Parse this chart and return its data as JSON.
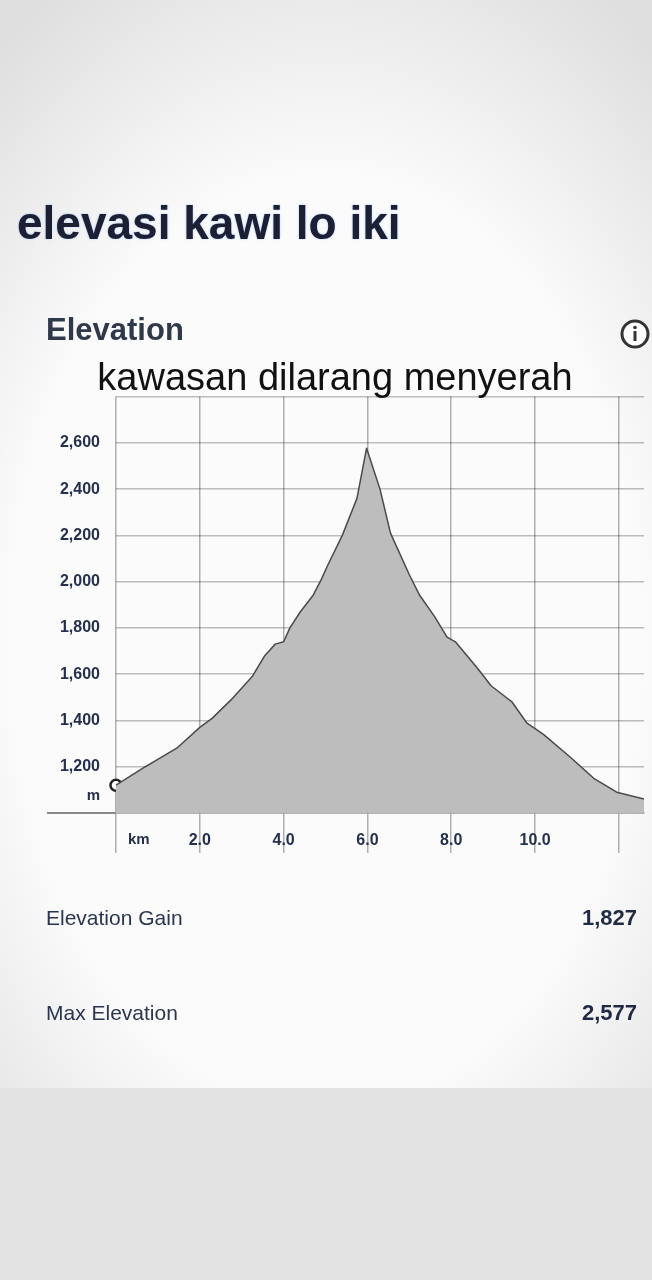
{
  "chart_data": {
    "type": "area",
    "title": "elevasi kawi lo iki",
    "subtitle": "Elevation",
    "xlabel": "km",
    "ylabel": "m",
    "annotations": [
      "kawasan dilarang menyerah",
      "Elevation Gain",
      "1,827",
      "Max Elevation",
      "2,577"
    ],
    "x": [
      0,
      0.7,
      1.45,
      2.0,
      2.3,
      2.75,
      3.25,
      3.55,
      3.8,
      4.0,
      4.15,
      4.4,
      4.7,
      4.9,
      5.05,
      5.4,
      5.75,
      5.98,
      6.3,
      6.55,
      7.0,
      7.25,
      7.6,
      7.9,
      8.1,
      8.65,
      8.95,
      9.45,
      9.8,
      10.2,
      10.85,
      11.4,
      11.95,
      12.6
    ],
    "series": [
      {
        "color": "#bdbdbd",
        "values": [
          1120,
          1200,
          1280,
          1370,
          1410,
          1490,
          1590,
          1680,
          1730,
          1740,
          1800,
          1870,
          1940,
          2010,
          2070,
          2200,
          2360,
          2577,
          2400,
          2210,
          2030,
          1940,
          1850,
          1760,
          1740,
          1620,
          1550,
          1480,
          1390,
          1340,
          1240,
          1150,
          1090,
          1060
        ]
      },
      {
        "type": "scatter",
        "x": [
          0
        ],
        "values": [
          1120
        ],
        "color": "#222222",
        "marker": "circle"
      }
    ],
    "xlim": [
      0,
      12.6
    ],
    "xticks": [
      {
        "value": 0,
        "label": null
      },
      {
        "value": 2,
        "label": "2.0"
      },
      {
        "value": 4,
        "label": "4.0"
      },
      {
        "value": 6,
        "label": "6.0"
      },
      {
        "value": 8,
        "label": "8.0"
      },
      {
        "value": 10,
        "label": "10.0"
      },
      {
        "value": 12,
        "label": null
      }
    ],
    "ylim": [
      1000,
      2800
    ],
    "yticks": [
      {
        "value": 1000,
        "label": null
      },
      {
        "value": 1200,
        "label": "1,200"
      },
      {
        "value": 1400,
        "label": "1,400"
      },
      {
        "value": 1600,
        "label": "1,600"
      },
      {
        "value": 1800,
        "label": "1,800"
      },
      {
        "value": 2000,
        "label": "2,000"
      },
      {
        "value": 2200,
        "label": "2,200"
      },
      {
        "value": 2400,
        "label": "2,400"
      },
      {
        "value": 2600,
        "label": "2,600"
      },
      {
        "value": 2800,
        "label": null
      }
    ],
    "grid": true
  }
}
